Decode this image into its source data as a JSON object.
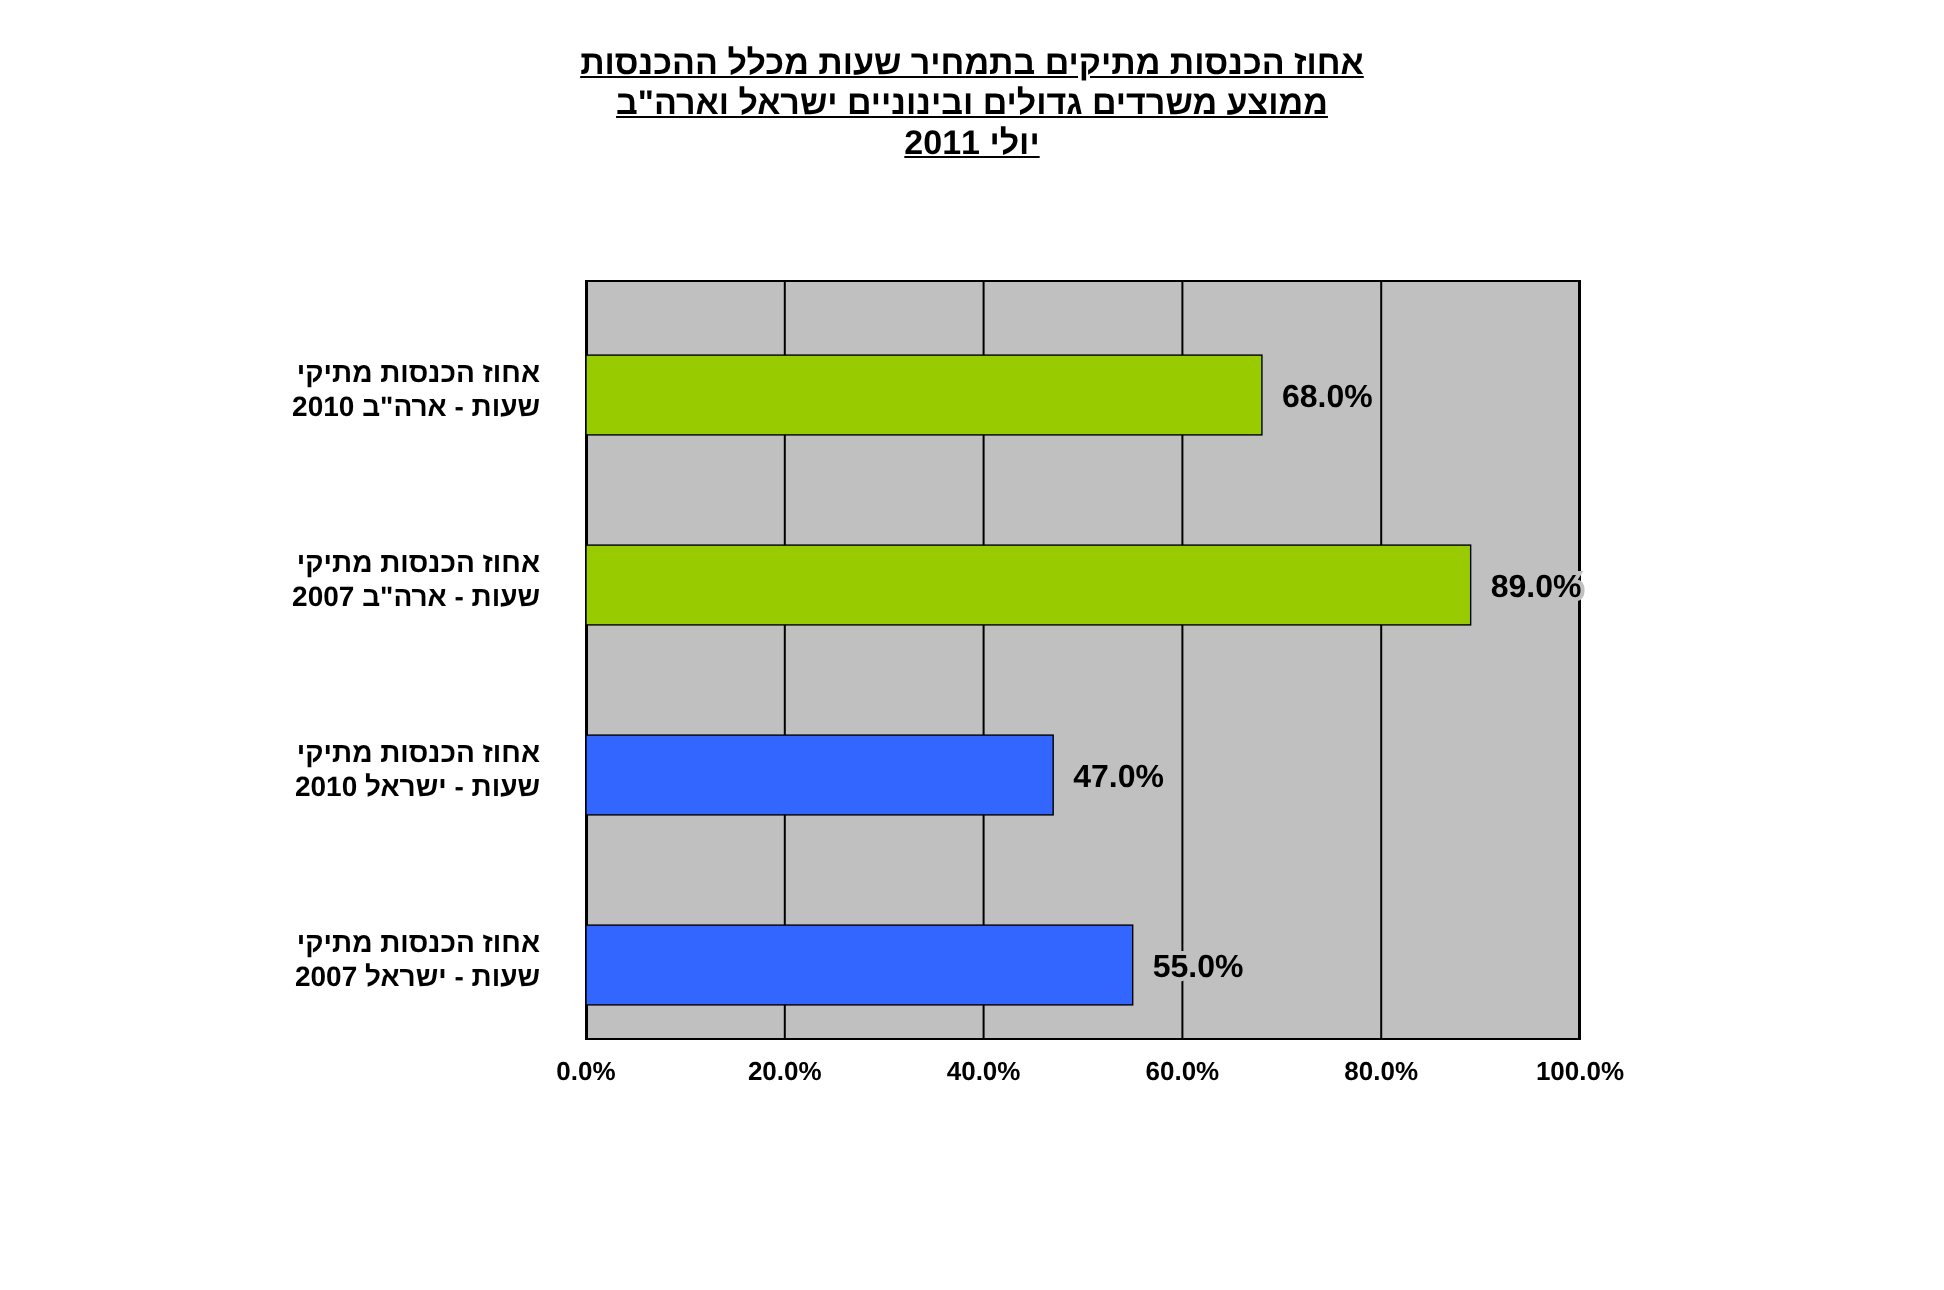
{
  "chart_data": {
    "type": "bar",
    "orientation": "horizontal",
    "title": "אחוז הכנסות מתיקים בתמחיר שעות מכלל ההכנסות",
    "subtitle": "ממוצע משרדים גדולים ובינוניים ישראל וארה\"ב",
    "annotations": [
      "יולי 2011"
    ],
    "categories": [
      "אחוז הכנסות מתיקי שעות - ארה\"ב 2010",
      "אחוז הכנסות מתיקי שעות - ארה\"ב 2007",
      "אחוז הכנסות מתיקי שעות - ישראל 2010",
      "אחוז הכנסות מתיקי שעות - ישראל 2007"
    ],
    "values": [
      68,
      89,
      47,
      55
    ],
    "colors": [
      "#99cc00",
      "#99cc00",
      "#3366ff",
      "#3366ff"
    ],
    "xlim": [
      0,
      100
    ],
    "xticks": [
      {
        "value": 0,
        "label": "0.0%"
      },
      {
        "value": 20,
        "label": "20.0%"
      },
      {
        "value": 40,
        "label": "40.0%"
      },
      {
        "value": 60,
        "label": "60.0%"
      },
      {
        "value": 80,
        "label": "80.0%"
      },
      {
        "value": 100,
        "label": "100.0%"
      }
    ],
    "value_labels": [
      "68.0%",
      "89.0%",
      "47.0%",
      "55.0%"
    ],
    "grid": "x"
  }
}
